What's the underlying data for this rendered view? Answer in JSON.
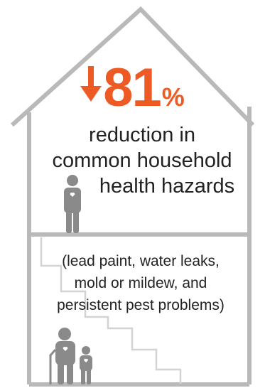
{
  "stat": {
    "direction_icon": "down-arrow-icon",
    "value": "81",
    "unit": "%"
  },
  "headline": {
    "line1": "reduction in",
    "line2": "common household",
    "line3": "health hazards"
  },
  "details": {
    "line1": "(lead paint, water leaks,",
    "line2": "mold or mildew, and",
    "line3": "persistent pest problems)"
  },
  "colors": {
    "accent": "#ee5a24",
    "outline": "#b9b9b9",
    "stairs": "#d3d3d3",
    "figures": "#8a8a8a",
    "text": "#222222"
  },
  "icons": [
    "house-outline-icon",
    "adult-figure-icon",
    "elderly-with-cane-figure-icon",
    "child-figure-icon",
    "staircase-icon"
  ]
}
